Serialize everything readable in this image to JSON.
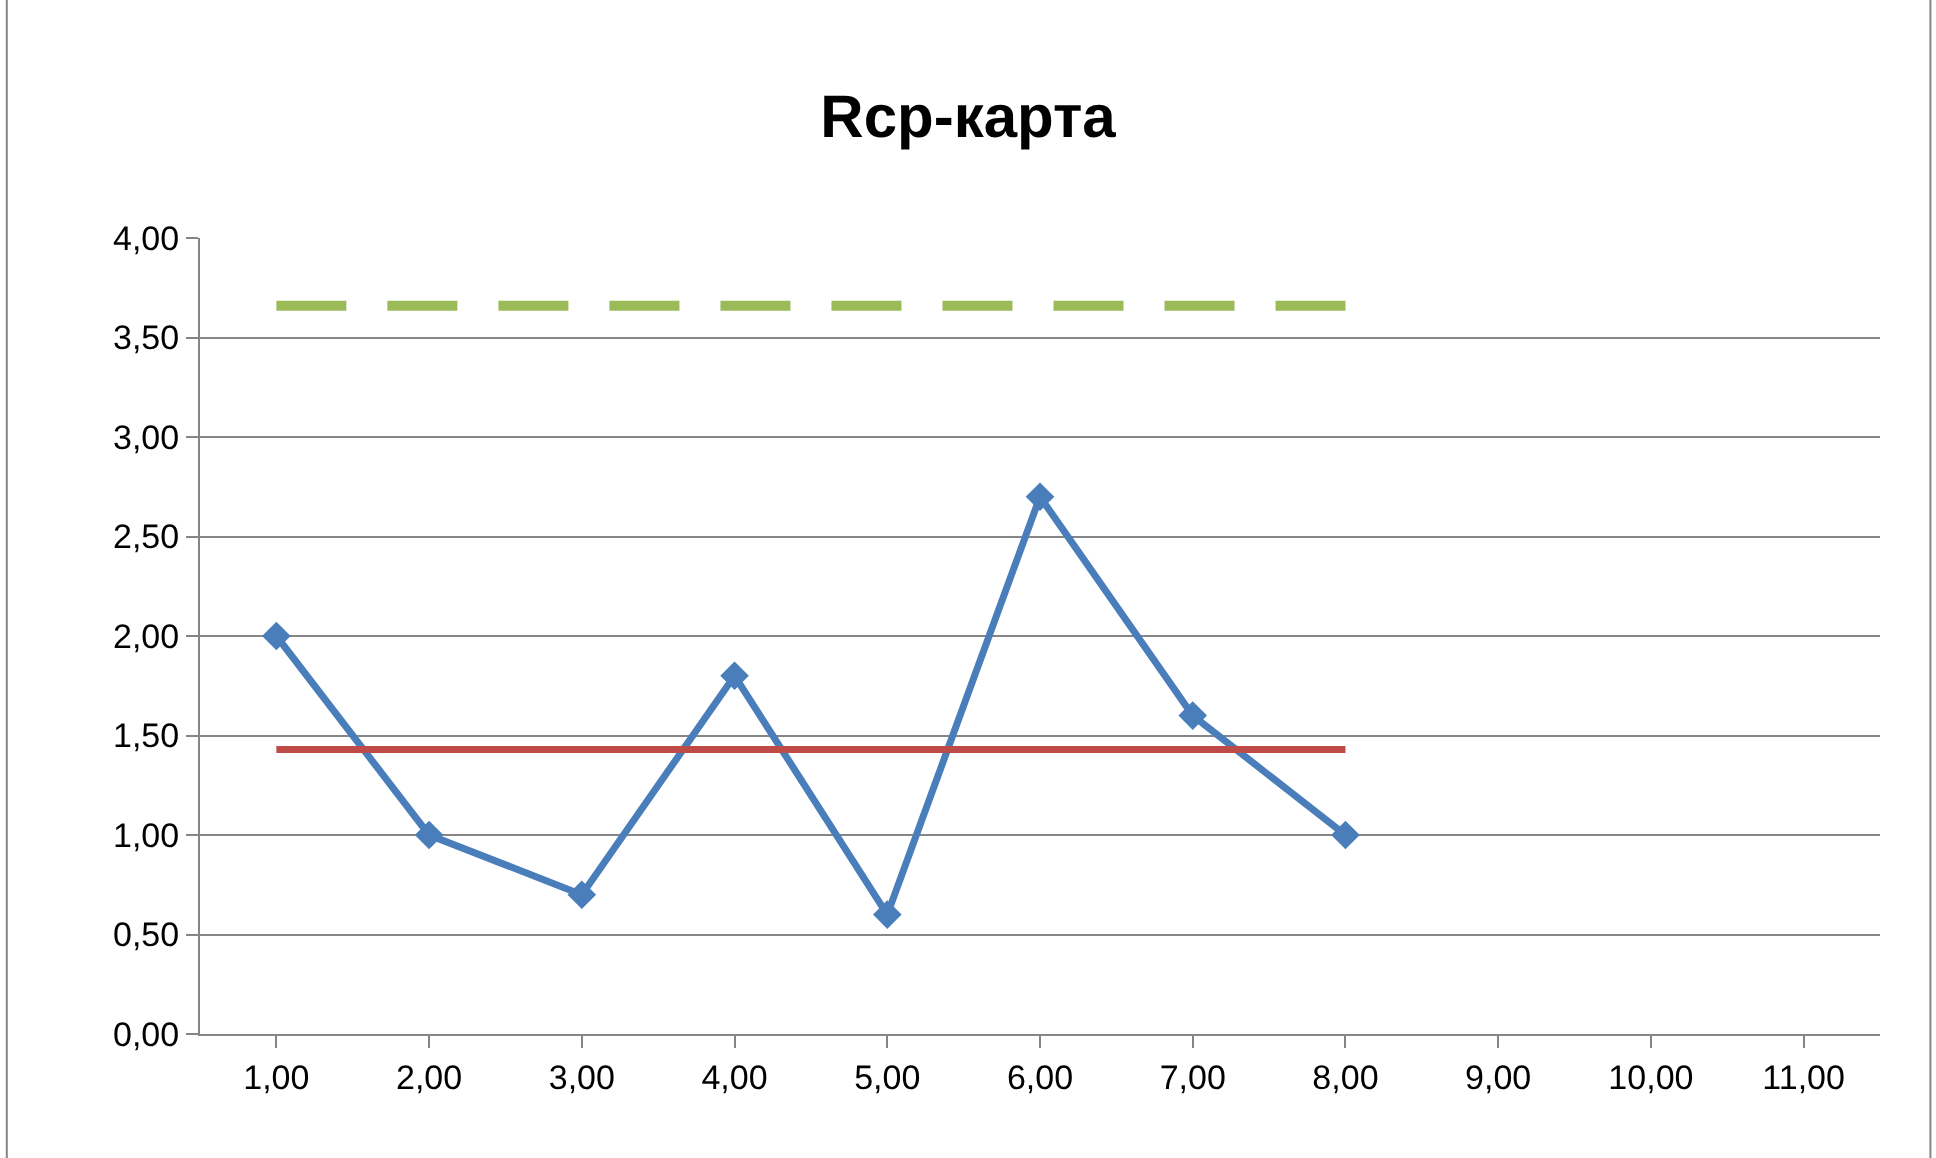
{
  "chart_data": {
    "type": "line",
    "title": "Rcp-карта",
    "categories": [
      "1,00",
      "2,00",
      "3,00",
      "4,00",
      "5,00",
      "6,00",
      "7,00",
      "8,00",
      "9,00",
      "10,00",
      "11,00"
    ],
    "series": [
      {
        "color": "#4a7ebb",
        "marker": "diamond",
        "line_style": "solid",
        "values": [
          2.0,
          1.0,
          0.7,
          1.8,
          0.6,
          2.7,
          1.6,
          1.0,
          null,
          null,
          null
        ]
      },
      {
        "color": "#be4b48",
        "marker": "none",
        "line_style": "solid",
        "values": [
          1.43,
          1.43,
          1.43,
          1.43,
          1.43,
          1.43,
          1.43,
          1.43,
          null,
          null,
          null
        ]
      },
      {
        "color": "#9bbb59",
        "marker": "none",
        "line_style": "dashed",
        "values": [
          3.66,
          3.66,
          3.66,
          3.66,
          3.66,
          3.66,
          3.66,
          3.66,
          null,
          null,
          null
        ]
      }
    ],
    "ylim": [
      0,
      4
    ],
    "yticks": [
      {
        "value": 0,
        "label": "0,00"
      },
      {
        "value": 0.5,
        "label": "0,50"
      },
      {
        "value": 1,
        "label": "1,00"
      },
      {
        "value": 1.5,
        "label": "1,50"
      },
      {
        "value": 2,
        "label": "2,00"
      },
      {
        "value": 2.5,
        "label": "2,50"
      },
      {
        "value": 3,
        "label": "3,00"
      },
      {
        "value": 3.5,
        "label": "3,50"
      },
      {
        "value": 4,
        "label": "4,00"
      }
    ],
    "grid": "y"
  }
}
